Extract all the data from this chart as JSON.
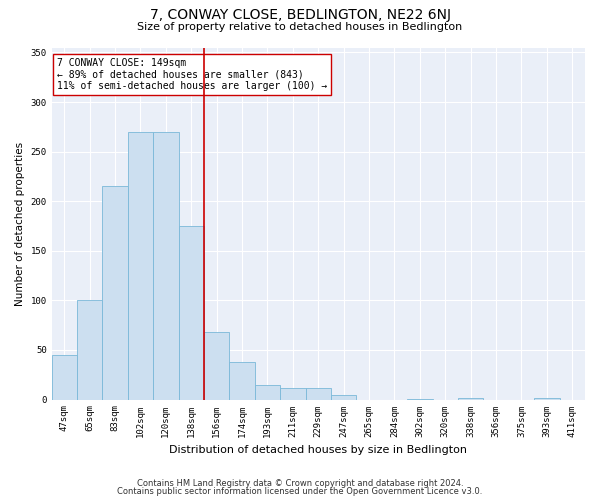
{
  "title": "7, CONWAY CLOSE, BEDLINGTON, NE22 6NJ",
  "subtitle": "Size of property relative to detached houses in Bedlington",
  "xlabel": "Distribution of detached houses by size in Bedlington",
  "ylabel": "Number of detached properties",
  "bar_color": "#ccdff0",
  "bar_edge_color": "#7ab8d8",
  "background_color": "#eaeff8",
  "grid_color": "#ffffff",
  "vline_x_index": 6,
  "vline_color": "#cc0000",
  "annotation_line1": "7 CONWAY CLOSE: 149sqm",
  "annotation_line2": "← 89% of detached houses are smaller (843)",
  "annotation_line3": "11% of semi-detached houses are larger (100) →",
  "annotation_box_color": "#ffffff",
  "annotation_box_edge": "#cc0000",
  "footer_line1": "Contains HM Land Registry data © Crown copyright and database right 2024.",
  "footer_line2": "Contains public sector information licensed under the Open Government Licence v3.0.",
  "bin_labels": [
    "47sqm",
    "65sqm",
    "83sqm",
    "102sqm",
    "120sqm",
    "138sqm",
    "156sqm",
    "174sqm",
    "193sqm",
    "211sqm",
    "229sqm",
    "247sqm",
    "265sqm",
    "284sqm",
    "302sqm",
    "320sqm",
    "338sqm",
    "356sqm",
    "375sqm",
    "393sqm",
    "411sqm"
  ],
  "bar_heights": [
    45,
    100,
    215,
    270,
    270,
    175,
    68,
    38,
    15,
    12,
    12,
    5,
    0,
    0,
    1,
    0,
    2,
    0,
    0,
    2,
    0
  ],
  "ylim": [
    0,
    355
  ],
  "yticks": [
    0,
    50,
    100,
    150,
    200,
    250,
    300,
    350
  ],
  "title_fontsize": 10,
  "subtitle_fontsize": 8,
  "ylabel_fontsize": 7.5,
  "xlabel_fontsize": 8,
  "tick_fontsize": 6.5,
  "annotation_fontsize": 7,
  "footer_fontsize": 6
}
